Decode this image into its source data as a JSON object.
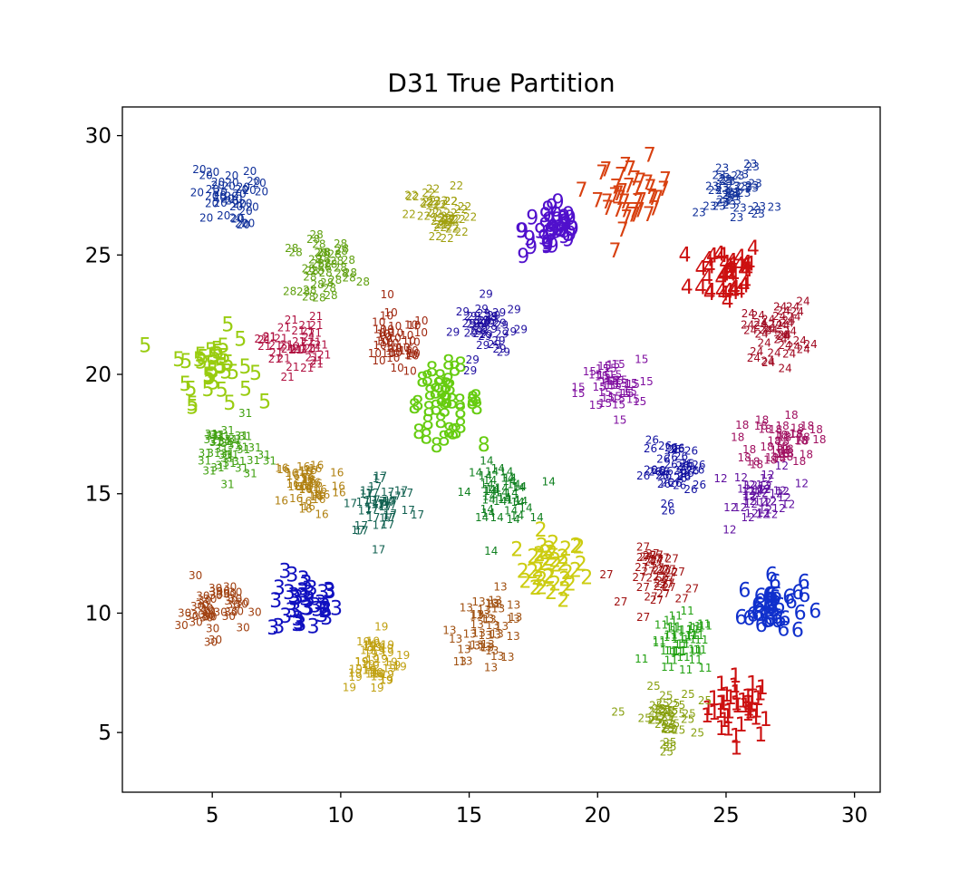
{
  "chart_data": {
    "type": "scatter",
    "title": "D31 True Partition",
    "xlabel": "",
    "ylabel": "",
    "xlim": [
      1.5,
      31
    ],
    "ylim": [
      2.5,
      31.2
    ],
    "xticks": [
      5,
      10,
      15,
      20,
      25,
      30
    ],
    "yticks": [
      5,
      10,
      15,
      20,
      25,
      30
    ],
    "grid": false,
    "legend": "none",
    "marker": "cluster id printed as text",
    "clusters": [
      {
        "id": "1",
        "cx": 25.6,
        "cy": 6.0,
        "spread": 0.65,
        "color": "#cc1010"
      },
      {
        "id": "2",
        "cx": 18.2,
        "cy": 11.8,
        "spread": 0.65,
        "color": "#cccc10"
      },
      {
        "id": "3",
        "cx": 8.6,
        "cy": 10.3,
        "spread": 0.65,
        "color": "#1010c0"
      },
      {
        "id": "4",
        "cx": 25.0,
        "cy": 24.2,
        "spread": 0.7,
        "color": "#cc1010"
      },
      {
        "id": "5",
        "cx": 5.0,
        "cy": 20.3,
        "spread": 0.75,
        "color": "#99cc10"
      },
      {
        "id": "6",
        "cx": 26.8,
        "cy": 10.2,
        "spread": 0.6,
        "color": "#1030cc"
      },
      {
        "id": "7",
        "cx": 21.4,
        "cy": 27.5,
        "spread": 0.7,
        "color": "#d84010"
      },
      {
        "id": "8",
        "cx": 14.0,
        "cy": 18.8,
        "spread": 0.7,
        "color": "#66cc10"
      },
      {
        "id": "9",
        "cx": 18.3,
        "cy": 26.0,
        "spread": 0.6,
        "color": "#5010cc"
      },
      {
        "id": "10",
        "cx": 12.1,
        "cy": 21.2,
        "spread": 0.65,
        "color": "#a02810"
      },
      {
        "id": "11",
        "cx": 23.3,
        "cy": 8.6,
        "spread": 0.6,
        "color": "#20a010"
      },
      {
        "id": "12",
        "cx": 26.5,
        "cy": 15.0,
        "spread": 0.6,
        "color": "#6010a0"
      },
      {
        "id": "13",
        "cx": 15.8,
        "cy": 9.4,
        "spread": 0.7,
        "color": "#a05010"
      },
      {
        "id": "14",
        "cx": 16.2,
        "cy": 15.0,
        "spread": 0.6,
        "color": "#108020"
      },
      {
        "id": "15",
        "cx": 20.5,
        "cy": 19.4,
        "spread": 0.6,
        "color": "#8010a0"
      },
      {
        "id": "16",
        "cx": 8.8,
        "cy": 15.3,
        "spread": 0.65,
        "color": "#b08010"
      },
      {
        "id": "17",
        "cx": 11.6,
        "cy": 14.5,
        "spread": 0.65,
        "color": "#106050"
      },
      {
        "id": "18",
        "cx": 27.2,
        "cy": 17.2,
        "spread": 0.6,
        "color": "#a01060"
      },
      {
        "id": "19",
        "cx": 11.2,
        "cy": 8.0,
        "spread": 0.6,
        "color": "#c0a010"
      },
      {
        "id": "20",
        "cx": 5.5,
        "cy": 27.4,
        "spread": 0.6,
        "color": "#10309a"
      },
      {
        "id": "21",
        "cx": 8.2,
        "cy": 21.2,
        "spread": 0.6,
        "color": "#b01040"
      },
      {
        "id": "22",
        "cx": 14.0,
        "cy": 26.6,
        "spread": 0.6,
        "color": "#a0a010"
      },
      {
        "id": "23",
        "cx": 25.4,
        "cy": 27.6,
        "spread": 0.65,
        "color": "#10309a"
      },
      {
        "id": "24",
        "cx": 27.0,
        "cy": 21.8,
        "spread": 0.6,
        "color": "#a00820"
      },
      {
        "id": "25",
        "cx": 22.6,
        "cy": 5.6,
        "spread": 0.6,
        "color": "#88a010"
      },
      {
        "id": "26",
        "cx": 23.0,
        "cy": 16.0,
        "spread": 0.55,
        "color": "#1010a0"
      },
      {
        "id": "27",
        "cx": 22.6,
        "cy": 11.5,
        "spread": 0.6,
        "color": "#a01010"
      },
      {
        "id": "28",
        "cx": 9.3,
        "cy": 24.5,
        "spread": 0.6,
        "color": "#60a010"
      },
      {
        "id": "29",
        "cx": 15.8,
        "cy": 21.9,
        "spread": 0.6,
        "color": "#2010a0"
      },
      {
        "id": "30",
        "cx": 5.0,
        "cy": 10.2,
        "spread": 0.6,
        "color": "#a04010"
      },
      {
        "id": "31",
        "cx": 5.6,
        "cy": 16.8,
        "spread": 0.6,
        "color": "#40a010"
      }
    ]
  }
}
